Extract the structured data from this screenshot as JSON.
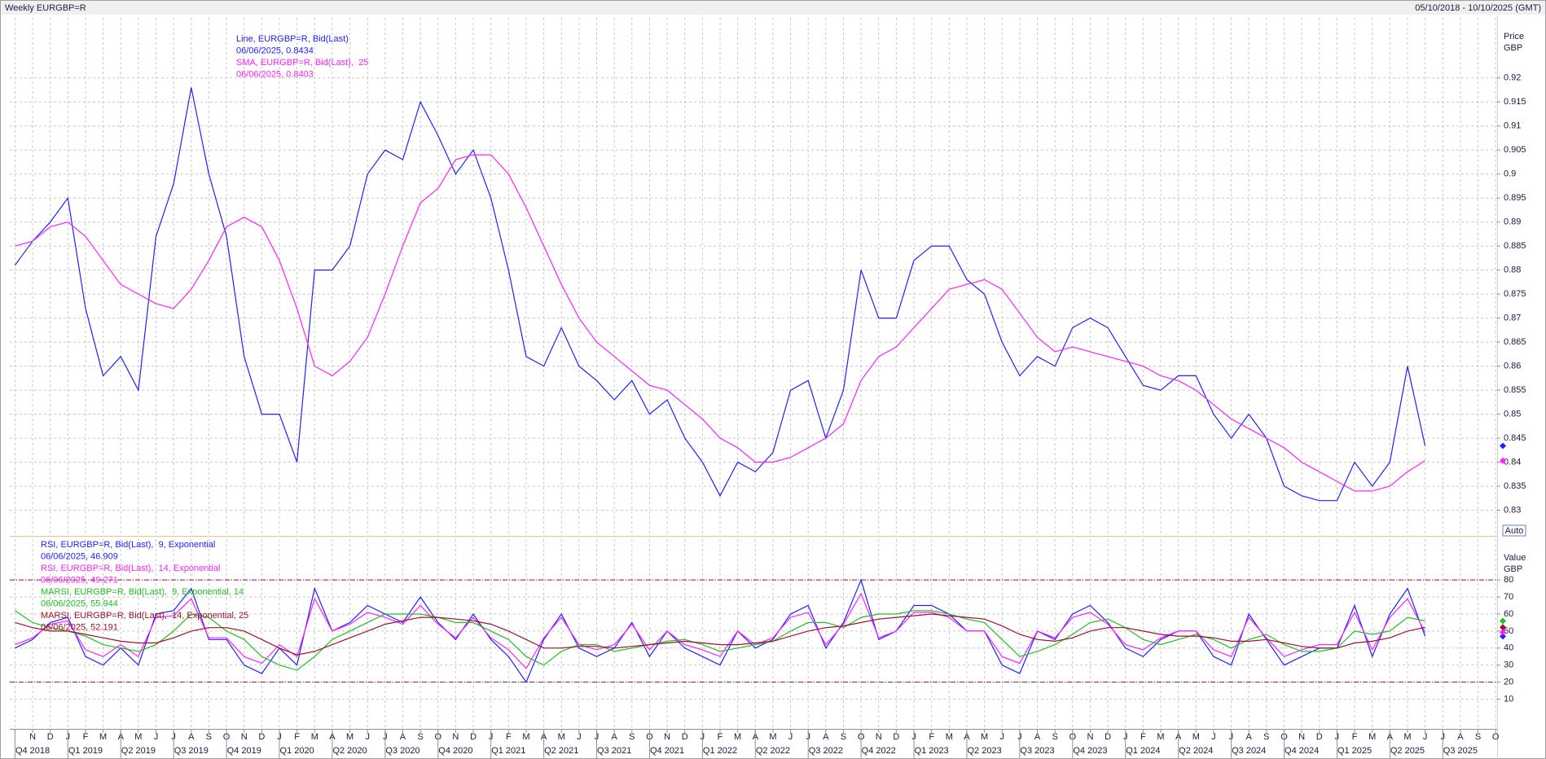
{
  "header": {
    "title": "Weekly EURGBP=R",
    "range": "05/10/2018 - 10/10/2025 (GMT)"
  },
  "chart_data": [
    {
      "type": "line",
      "y_label": "Price",
      "y_unit": "GBP",
      "button": "Auto",
      "grid": true,
      "ylim": [
        0.825,
        0.9325
      ],
      "yticks": [
        0.83,
        0.835,
        0.84,
        0.845,
        0.85,
        0.855,
        0.86,
        0.865,
        0.87,
        0.875,
        0.88,
        0.885,
        0.89,
        0.895,
        0.9,
        0.905,
        0.91,
        0.915,
        0.92
      ],
      "series": [
        {
          "name": "Line, EURGBP=R, Bid(Last)",
          "last_label": "06/06/2025, 0.8434",
          "color": "#2020ff",
          "values": [
            0.881,
            0.886,
            0.89,
            0.895,
            0.872,
            0.858,
            0.862,
            0.855,
            0.887,
            0.898,
            0.918,
            0.9,
            0.887,
            0.862,
            0.85,
            0.85,
            0.84,
            0.88,
            0.88,
            0.885,
            0.9,
            0.905,
            0.903,
            0.915,
            0.908,
            0.9,
            0.905,
            0.895,
            0.88,
            0.862,
            0.86,
            0.868,
            0.86,
            0.857,
            0.853,
            0.857,
            0.85,
            0.853,
            0.845,
            0.84,
            0.833,
            0.84,
            0.838,
            0.842,
            0.855,
            0.857,
            0.845,
            0.855,
            0.88,
            0.87,
            0.87,
            0.882,
            0.885,
            0.885,
            0.878,
            0.875,
            0.865,
            0.858,
            0.862,
            0.86,
            0.868,
            0.87,
            0.868,
            0.862,
            0.856,
            0.855,
            0.858,
            0.858,
            0.85,
            0.845,
            0.85,
            0.845,
            0.835,
            0.833,
            0.832,
            0.832,
            0.84,
            0.835,
            0.84,
            0.86,
            0.8434,
            null,
            null,
            null,
            null
          ]
        },
        {
          "name": "SMA, EURGBP=R, Bid(Last),  25",
          "last_label": "06/06/2025, 0.8403",
          "color": "#ff20ff",
          "values": [
            0.885,
            0.886,
            0.889,
            0.89,
            0.887,
            0.882,
            0.877,
            0.875,
            0.873,
            0.872,
            0.876,
            0.882,
            0.889,
            0.891,
            0.889,
            0.882,
            0.872,
            0.86,
            0.858,
            0.861,
            0.866,
            0.875,
            0.885,
            0.894,
            0.897,
            0.903,
            0.904,
            0.904,
            0.9,
            0.893,
            0.885,
            0.877,
            0.87,
            0.865,
            0.862,
            0.859,
            0.856,
            0.855,
            0.852,
            0.849,
            0.845,
            0.843,
            0.84,
            0.84,
            0.841,
            0.843,
            0.845,
            0.848,
            0.857,
            0.862,
            0.864,
            0.868,
            0.872,
            0.876,
            0.877,
            0.878,
            0.876,
            0.871,
            0.866,
            0.863,
            0.864,
            0.863,
            0.862,
            0.861,
            0.86,
            0.858,
            0.857,
            0.855,
            0.852,
            0.849,
            0.847,
            0.845,
            0.843,
            0.84,
            0.838,
            0.836,
            0.834,
            0.834,
            0.835,
            0.838,
            0.8403,
            null,
            null,
            null,
            null
          ]
        }
      ]
    },
    {
      "type": "line",
      "y_label": "Value",
      "y_unit": "GBP",
      "grid": true,
      "ylim": [
        -7,
        104
      ],
      "yticks": [
        10,
        20,
        30,
        40,
        50,
        60,
        70,
        80
      ],
      "ref_lines": [
        80,
        20
      ],
      "categories": [
        null,
        "N",
        "D",
        "J",
        "F",
        "M",
        "A",
        "M",
        "J",
        "J",
        "A",
        "S",
        "O",
        "N",
        "D",
        "J",
        "F",
        "M",
        "A",
        "M",
        "J",
        "J",
        "A",
        "S",
        "O",
        "N",
        "D",
        "J",
        "F",
        "M",
        "A",
        "M",
        "J",
        "J",
        "A",
        "S",
        "O",
        "N",
        "D",
        "J",
        "F",
        "M",
        "A",
        "M",
        "J",
        "J",
        "A",
        "S",
        "O",
        "N",
        "D",
        "J",
        "F",
        "M",
        "A",
        "M",
        "J",
        "J",
        "A",
        "S",
        "O",
        "N",
        "D",
        "J",
        "F",
        "M",
        "A",
        "M",
        "J",
        "J",
        "A",
        "S",
        "O",
        "N",
        "D",
        "J",
        "F",
        "M",
        "A",
        "M",
        "J",
        "J",
        "A",
        "S",
        "O"
      ],
      "quarters": [
        "Q4 2018",
        "Q1 2019",
        "Q2 2019",
        "Q3 2019",
        "Q4 2019",
        "Q1 2020",
        "Q2 2020",
        "Q3 2020",
        "Q4 2020",
        "Q1 2021",
        "Q2 2021",
        "Q3 2021",
        "Q4 2021",
        "Q1 2022",
        "Q2 2022",
        "Q3 2022",
        "Q4 2022",
        "Q1 2023",
        "Q2 2023",
        "Q3 2023",
        "Q4 2023",
        "Q1 2024",
        "Q2 2024",
        "Q3 2024",
        "Q4 2024",
        "Q1 2025",
        "Q2 2025",
        "Q3 2025"
      ],
      "series": [
        {
          "name": "RSI, EURGBP=R, Bid(Last),  9, Exponential",
          "last_label": "06/06/2025, 46.909",
          "color": "#2020ff",
          "values": [
            40,
            45,
            55,
            58,
            35,
            30,
            40,
            30,
            60,
            62,
            75,
            45,
            45,
            30,
            25,
            40,
            30,
            75,
            50,
            55,
            65,
            60,
            55,
            70,
            55,
            45,
            60,
            45,
            35,
            20,
            45,
            60,
            40,
            35,
            40,
            55,
            35,
            50,
            40,
            35,
            30,
            50,
            40,
            45,
            60,
            65,
            40,
            55,
            80,
            45,
            50,
            65,
            65,
            60,
            50,
            50,
            30,
            25,
            50,
            45,
            60,
            65,
            55,
            40,
            35,
            45,
            50,
            50,
            35,
            30,
            60,
            45,
            30,
            35,
            40,
            40,
            65,
            35,
            60,
            75,
            46.909,
            null,
            null,
            null,
            null
          ]
        },
        {
          "name": "RSI, EURGBP=R, Bid(Last),  14, Exponential",
          "last_label": "06/06/2025, 49.271",
          "color": "#ff20ff",
          "values": [
            42,
            46,
            54,
            56,
            39,
            35,
            42,
            35,
            58,
            59,
            69,
            46,
            46,
            35,
            31,
            42,
            35,
            69,
            50,
            54,
            61,
            58,
            54,
            65,
            54,
            46,
            58,
            46,
            39,
            28,
            46,
            58,
            42,
            39,
            42,
            54,
            39,
            50,
            42,
            39,
            35,
            50,
            42,
            46,
            58,
            61,
            42,
            54,
            72,
            46,
            50,
            61,
            61,
            58,
            50,
            50,
            35,
            31,
            50,
            46,
            58,
            61,
            54,
            42,
            39,
            46,
            50,
            50,
            39,
            35,
            58,
            46,
            35,
            39,
            42,
            42,
            61,
            39,
            58,
            69,
            49.271,
            null,
            null,
            null,
            null
          ]
        },
        {
          "name": "MARSI, EURGBP=R, Bid(Last),  9, Exponential, 14",
          "last_label": "06/06/2025, 55.944",
          "color": "#20c020",
          "values": [
            62,
            55,
            52,
            50,
            47,
            42,
            40,
            38,
            42,
            50,
            60,
            58,
            50,
            45,
            35,
            30,
            27,
            35,
            45,
            50,
            55,
            60,
            60,
            60,
            58,
            55,
            55,
            50,
            45,
            35,
            30,
            38,
            42,
            42,
            38,
            40,
            42,
            44,
            45,
            42,
            38,
            40,
            42,
            44,
            50,
            55,
            55,
            52,
            58,
            60,
            60,
            62,
            62,
            60,
            57,
            55,
            45,
            35,
            38,
            42,
            48,
            55,
            57,
            52,
            45,
            42,
            45,
            48,
            45,
            40,
            45,
            48,
            42,
            38,
            38,
            40,
            50,
            48,
            50,
            58,
            55.944,
            null,
            null,
            null,
            null
          ]
        },
        {
          "name": "MARSI, EURGBP=R, Bid(Last),  14, Exponential, 25",
          "last_label": "06/06/2025, 52.191",
          "color": "#a01030",
          "values": [
            55,
            52,
            50,
            50,
            48,
            46,
            44,
            43,
            43,
            46,
            50,
            52,
            52,
            50,
            45,
            40,
            36,
            38,
            42,
            46,
            50,
            54,
            56,
            58,
            58,
            57,
            56,
            54,
            50,
            45,
            40,
            40,
            41,
            41,
            40,
            41,
            42,
            43,
            44,
            43,
            42,
            42,
            43,
            44,
            47,
            50,
            52,
            53,
            55,
            57,
            58,
            59,
            60,
            59,
            58,
            57,
            53,
            48,
            45,
            44,
            46,
            50,
            52,
            52,
            50,
            48,
            47,
            47,
            46,
            44,
            44,
            45,
            43,
            41,
            40,
            40,
            43,
            44,
            46,
            50,
            52.191,
            null,
            null,
            null,
            null
          ]
        }
      ]
    }
  ]
}
